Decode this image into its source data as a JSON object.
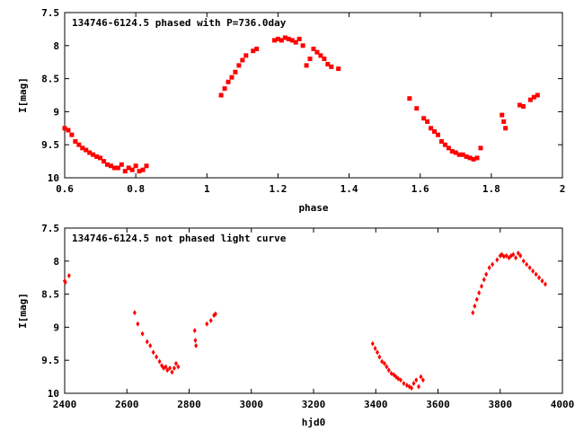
{
  "chart_data": [
    {
      "type": "scatter",
      "title": "134746-6124.5 phased with P=736.0day",
      "xlabel": "phase",
      "ylabel": "I[mag]",
      "xlim": [
        0.6,
        2.0
      ],
      "ylim": [
        7.5,
        10.0
      ],
      "y_inverted": true,
      "x_ticks": [
        0.6,
        0.8,
        1.0,
        1.2,
        1.4,
        1.6,
        1.8,
        2.0
      ],
      "x_tick_labels": [
        "0.6",
        "0.8",
        "1",
        "1.2",
        "1.4",
        "1.6",
        "1.8",
        "2"
      ],
      "y_ticks": [
        7.5,
        8.0,
        8.5,
        9.0,
        9.5,
        10.0
      ],
      "y_tick_labels": [
        "7.5",
        "8",
        "8.5",
        "9",
        "9.5",
        "10"
      ],
      "marker": "square",
      "color": "#ff0000",
      "grid": false,
      "series": [
        {
          "x": [
            0.6,
            0.61,
            0.62,
            0.63,
            0.64,
            0.65,
            0.66,
            0.67,
            0.68,
            0.69,
            0.7,
            0.71,
            0.72,
            0.73,
            0.74,
            0.75,
            0.76,
            0.77,
            0.78,
            0.79,
            0.8,
            0.81,
            0.82,
            0.83,
            1.04,
            1.05,
            1.06,
            1.07,
            1.08,
            1.09,
            1.1,
            1.11,
            1.13,
            1.14,
            1.19,
            1.2,
            1.21,
            1.22,
            1.23,
            1.24,
            1.25,
            1.26,
            1.27,
            1.28,
            1.29,
            1.3,
            1.31,
            1.32,
            1.33,
            1.34,
            1.35,
            1.37,
            1.57,
            1.59,
            1.61,
            1.62,
            1.63,
            1.64,
            1.65,
            1.66,
            1.67,
            1.68,
            1.69,
            1.7,
            1.71,
            1.72,
            1.73,
            1.74,
            1.75,
            1.76,
            1.77,
            1.83,
            1.835,
            1.84,
            1.88,
            1.89,
            1.91,
            1.92,
            1.93
          ],
          "y": [
            9.25,
            9.28,
            9.35,
            9.45,
            9.5,
            9.55,
            9.58,
            9.62,
            9.65,
            9.68,
            9.7,
            9.75,
            9.8,
            9.82,
            9.85,
            9.85,
            9.8,
            9.9,
            9.85,
            9.88,
            9.82,
            9.9,
            9.88,
            9.82,
            8.75,
            8.65,
            8.55,
            8.48,
            8.4,
            8.3,
            8.22,
            8.15,
            8.08,
            8.05,
            7.92,
            7.9,
            7.92,
            7.88,
            7.9,
            7.92,
            7.95,
            7.9,
            8.0,
            8.3,
            8.2,
            8.05,
            8.1,
            8.15,
            8.2,
            8.28,
            8.32,
            8.35,
            8.8,
            8.95,
            9.1,
            9.15,
            9.25,
            9.3,
            9.35,
            9.45,
            9.5,
            9.55,
            9.6,
            9.62,
            9.65,
            9.65,
            9.68,
            9.7,
            9.72,
            9.7,
            9.55,
            9.05,
            9.15,
            9.25,
            8.9,
            8.92,
            8.82,
            8.78,
            8.75
          ]
        }
      ]
    },
    {
      "type": "scatter",
      "title": "134746-6124.5 not phased light curve",
      "xlabel": "hjd0",
      "ylabel": "I[mag]",
      "xlim": [
        2400,
        4000
      ],
      "ylim": [
        7.5,
        10.0
      ],
      "y_inverted": true,
      "x_ticks": [
        2400,
        2600,
        2800,
        3000,
        3200,
        3400,
        3600,
        3800,
        4000
      ],
      "x_tick_labels": [
        "2400",
        "2600",
        "2800",
        "3000",
        "3200",
        "3400",
        "3600",
        "3800",
        "4000"
      ],
      "y_ticks": [
        7.5,
        8.0,
        8.5,
        9.0,
        9.5,
        10.0
      ],
      "y_tick_labels": [
        "7.5",
        "8",
        "8.5",
        "9",
        "9.5",
        "10"
      ],
      "marker": "diamond",
      "color": "#ff0000",
      "grid": false,
      "series": [
        {
          "x": [
            2400,
            2402,
            2414,
            2625,
            2635,
            2650,
            2665,
            2675,
            2685,
            2695,
            2705,
            2712,
            2718,
            2725,
            2730,
            2738,
            2745,
            2752,
            2758,
            2765,
            2818,
            2820,
            2822,
            2857,
            2870,
            2880,
            2885,
            3390,
            3398,
            3405,
            3412,
            3420,
            3428,
            3435,
            3442,
            3450,
            3458,
            3465,
            3472,
            3480,
            3490,
            3500,
            3508,
            3515,
            3522,
            3530,
            3538,
            3545,
            3552,
            3712,
            3718,
            3725,
            3732,
            3740,
            3748,
            3755,
            3765,
            3775,
            3790,
            3800,
            3805,
            3812,
            3820,
            3828,
            3835,
            3842,
            3850,
            3858,
            3865,
            3875,
            3885,
            3895,
            3905,
            3915,
            3925,
            3935,
            3945
          ],
          "y": [
            8.3,
            8.32,
            8.22,
            8.78,
            8.95,
            9.1,
            9.22,
            9.28,
            9.38,
            9.45,
            9.52,
            9.58,
            9.62,
            9.6,
            9.65,
            9.62,
            9.68,
            9.62,
            9.55,
            9.6,
            9.05,
            9.2,
            9.28,
            8.95,
            8.9,
            8.82,
            8.8,
            9.25,
            9.32,
            9.38,
            9.45,
            9.52,
            9.55,
            9.6,
            9.65,
            9.7,
            9.72,
            9.75,
            9.78,
            9.8,
            9.85,
            9.88,
            9.9,
            9.92,
            9.85,
            9.8,
            9.9,
            9.75,
            9.8,
            8.78,
            8.68,
            8.58,
            8.48,
            8.38,
            8.28,
            8.2,
            8.1,
            8.05,
            7.98,
            7.92,
            7.9,
            7.93,
            7.92,
            7.95,
            7.92,
            7.9,
            7.95,
            7.88,
            7.92,
            8.0,
            8.05,
            8.1,
            8.15,
            8.2,
            8.25,
            8.3,
            8.35
          ]
        }
      ]
    }
  ]
}
